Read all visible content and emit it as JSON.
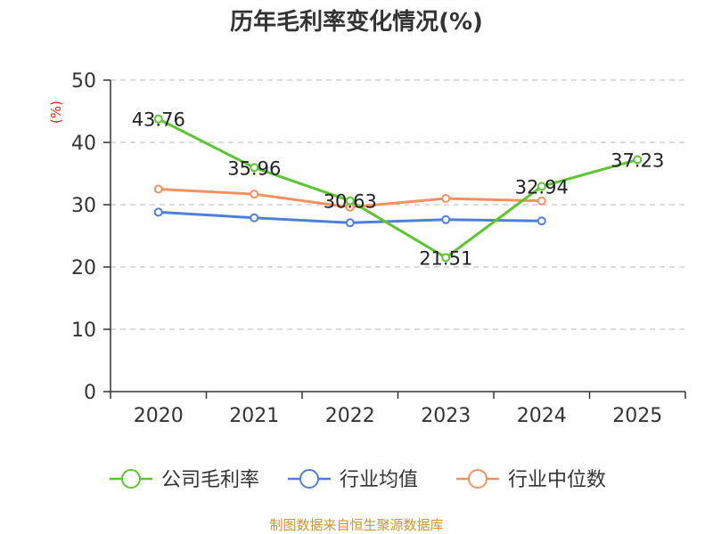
{
  "title": "历年毛利率变化情况(%)",
  "footer": "制图数据来自恒生聚源数据库",
  "colors": {
    "footer": "#c8952e",
    "unit": "#e02020",
    "axis": "#333333",
    "grid": "#c8c8c8"
  },
  "chart_data": {
    "type": "line",
    "unit_label": "(%)",
    "categories": [
      "2020",
      "2021",
      "2022",
      "2023",
      "2024",
      "2025"
    ],
    "ylim": [
      0,
      50
    ],
    "yticks": [
      0,
      10,
      20,
      30,
      40,
      50
    ],
    "grid": true,
    "legend_position": "bottom",
    "series": [
      {
        "name": "公司毛利率",
        "color": "#5cc531",
        "values": [
          43.76,
          35.96,
          30.63,
          21.51,
          32.94,
          37.23
        ],
        "labels": [
          "43.76",
          "35.96",
          "30.63",
          "21.51",
          "32.94",
          "37.23"
        ]
      },
      {
        "name": "行业均值",
        "color": "#4f7fdc",
        "values": [
          28.8,
          27.9,
          27.1,
          27.6,
          27.4,
          null
        ]
      },
      {
        "name": "行业中位数",
        "color": "#f59160",
        "values": [
          32.5,
          31.7,
          29.6,
          31.0,
          30.6,
          null
        ]
      }
    ]
  }
}
